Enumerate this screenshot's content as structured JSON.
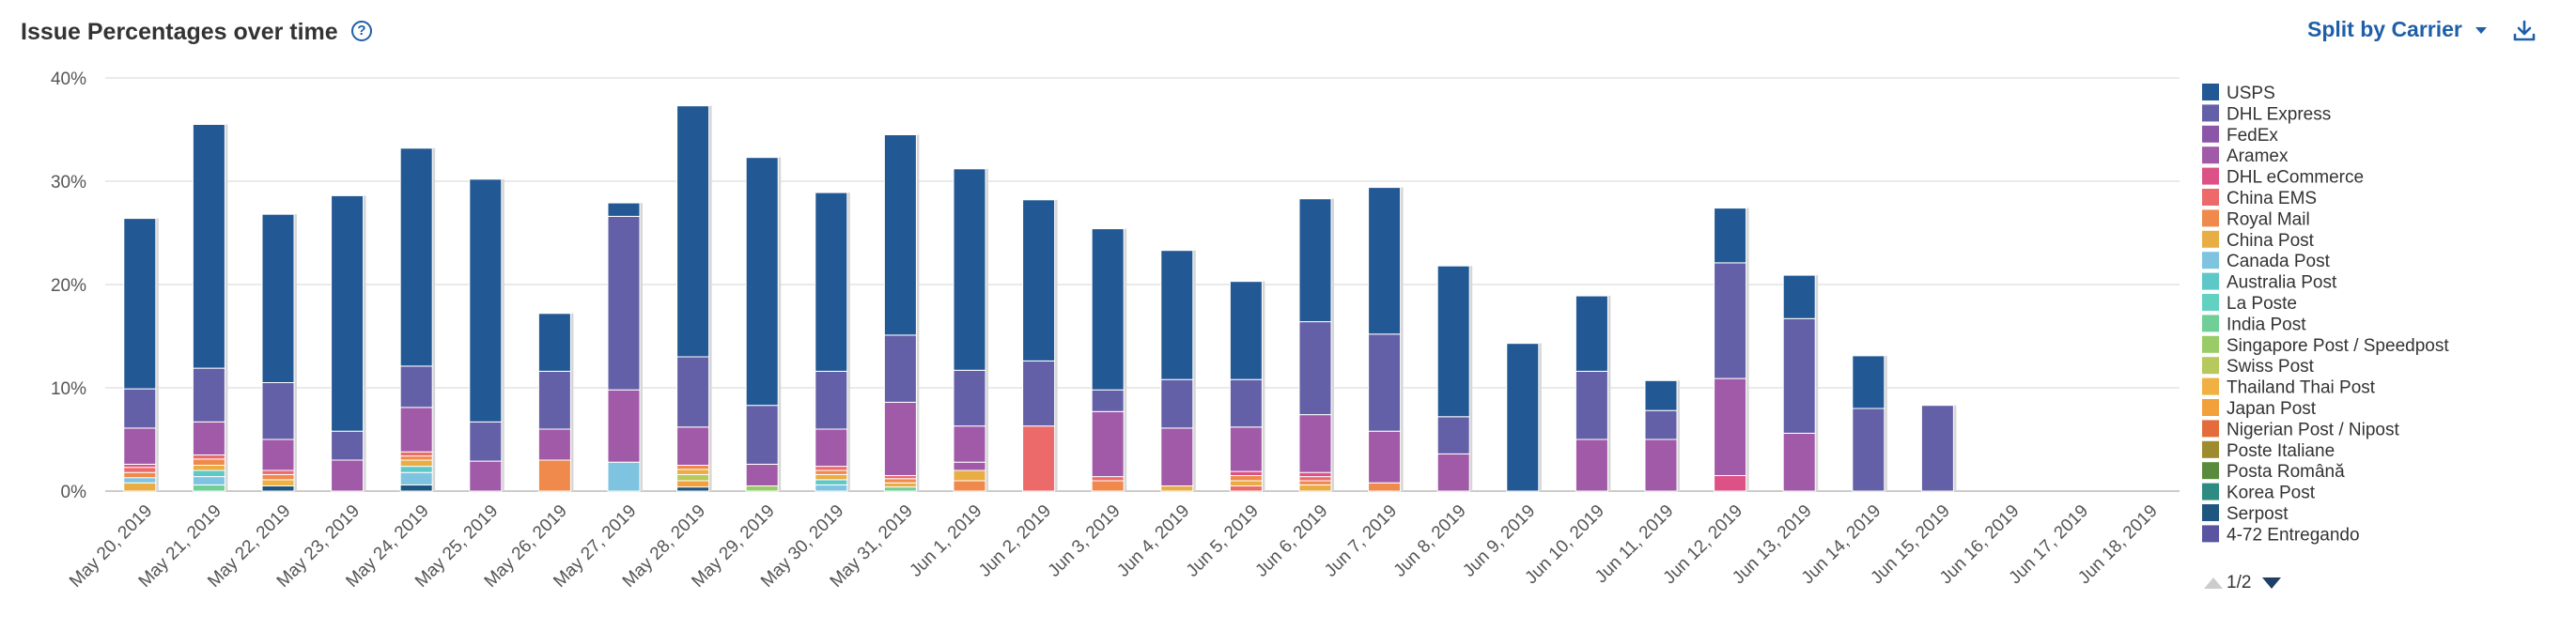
{
  "header": {
    "title": "Issue Percentages over time",
    "help_icon": "question-circle-icon",
    "split_label": "Split by Carrier",
    "download_icon": "download-icon",
    "accent_color": "#1f5fa8"
  },
  "legend": {
    "items": [
      {
        "name": "USPS",
        "color": "#225893"
      },
      {
        "name": "DHL Express",
        "color": "#6360a7"
      },
      {
        "name": "FedEx",
        "color": "#8c56a8"
      },
      {
        "name": "Aramex",
        "color": "#a15aa8"
      },
      {
        "name": "DHL eCommerce",
        "color": "#dd5286"
      },
      {
        "name": "China EMS",
        "color": "#ed6a6a"
      },
      {
        "name": "Royal Mail",
        "color": "#ef8a4c"
      },
      {
        "name": "China Post",
        "color": "#e8ad45"
      },
      {
        "name": "Canada Post",
        "color": "#7ec3df"
      },
      {
        "name": "Australia Post",
        "color": "#5ec8c8"
      },
      {
        "name": "La Poste",
        "color": "#63d1c2"
      },
      {
        "name": "India Post",
        "color": "#6fcf97"
      },
      {
        "name": "Singapore Post / Speedpost",
        "color": "#99cc66"
      },
      {
        "name": "Swiss Post",
        "color": "#b7c95c"
      },
      {
        "name": "Thailand Thai Post",
        "color": "#f0b042"
      },
      {
        "name": "Japan Post",
        "color": "#f2a03c"
      },
      {
        "name": "Nigerian Post / Nipost",
        "color": "#e46c3b"
      },
      {
        "name": "Poste Italiane",
        "color": "#9d8b2e"
      },
      {
        "name": "Posta Română",
        "color": "#5a8a3c"
      },
      {
        "name": "Korea Post",
        "color": "#2e8b84"
      },
      {
        "name": "Serpost",
        "color": "#1f5680"
      },
      {
        "name": "4-72 Entregando",
        "color": "#5a55a0"
      }
    ],
    "pager_text": "1/2"
  },
  "chart_data": {
    "type": "bar",
    "stacked": true,
    "title": "Issue Percentages over time",
    "ylim": [
      0,
      40
    ],
    "yticks": [
      "0%",
      "10%",
      "20%",
      "30%",
      "40%"
    ],
    "grid": true,
    "legend_position": "right",
    "categories": [
      "May 20, 2019",
      "May 21, 2019",
      "May 22, 2019",
      "May 23, 2019",
      "May 24, 2019",
      "May 25, 2019",
      "May 26, 2019",
      "May 27, 2019",
      "May 28, 2019",
      "May 29, 2019",
      "May 30, 2019",
      "May 31, 2019",
      "Jun 1, 2019",
      "Jun 2, 2019",
      "Jun 3, 2019",
      "Jun 4, 2019",
      "Jun 5, 2019",
      "Jun 6, 2019",
      "Jun 7, 2019",
      "Jun 8, 2019",
      "Jun 9, 2019",
      "Jun 10, 2019",
      "Jun 11, 2019",
      "Jun 12, 2019",
      "Jun 13, 2019",
      "Jun 14, 2019",
      "Jun 15, 2019",
      "Jun 16, 2019",
      "Jun 17, 2019",
      "Jun 18, 2019"
    ],
    "bars": [
      [
        [
          "China Post",
          0.8
        ],
        [
          "Canada Post",
          0.5
        ],
        [
          "Royal Mail",
          0.5
        ],
        [
          "China EMS",
          0.5
        ],
        [
          "DHL eCommerce",
          0.3
        ],
        [
          "Aramex",
          3.5
        ],
        [
          "DHL Express",
          3.8
        ],
        [
          "USPS",
          16.5
        ]
      ],
      [
        [
          "India Post",
          0.6
        ],
        [
          "Canada Post",
          0.8
        ],
        [
          "Australia Post",
          0.6
        ],
        [
          "China Post",
          0.5
        ],
        [
          "Royal Mail",
          0.6
        ],
        [
          "China EMS",
          0.4
        ],
        [
          "Aramex",
          3.2
        ],
        [
          "DHL Express",
          5.2
        ],
        [
          "USPS",
          23.6
        ]
      ],
      [
        [
          "Serpost",
          0.5
        ],
        [
          "Thailand Thai Post",
          0.6
        ],
        [
          "Royal Mail",
          0.5
        ],
        [
          "China EMS",
          0.4
        ],
        [
          "Aramex",
          3.0
        ],
        [
          "DHL Express",
          5.5
        ],
        [
          "USPS",
          16.3
        ]
      ],
      [
        [
          "Aramex",
          3.0
        ],
        [
          "DHL Express",
          2.8
        ],
        [
          "USPS",
          22.8
        ]
      ],
      [
        [
          "Serpost",
          0.6
        ],
        [
          "Canada Post",
          1.2
        ],
        [
          "Australia Post",
          0.6
        ],
        [
          "China Post",
          0.6
        ],
        [
          "Royal Mail",
          0.4
        ],
        [
          "China EMS",
          0.4
        ],
        [
          "Aramex",
          4.3
        ],
        [
          "DHL Express",
          4.0
        ],
        [
          "USPS",
          21.1
        ]
      ],
      [
        [
          "Aramex",
          2.9
        ],
        [
          "DHL Express",
          3.8
        ],
        [
          "USPS",
          23.5
        ]
      ],
      [
        [
          "Royal Mail",
          3.0
        ],
        [
          "Aramex",
          3.0
        ],
        [
          "DHL Express",
          5.6
        ],
        [
          "USPS",
          5.6
        ]
      ],
      [
        [
          "Canada Post",
          2.8
        ],
        [
          "Aramex",
          7.0
        ],
        [
          "DHL Express",
          16.8
        ],
        [
          "USPS",
          1.3
        ]
      ],
      [
        [
          "Serpost",
          0.4
        ],
        [
          "Japan Post",
          0.6
        ],
        [
          "Swiss Post",
          0.6
        ],
        [
          "China Post",
          0.5
        ],
        [
          "Royal Mail",
          0.4
        ],
        [
          "Aramex",
          3.7
        ],
        [
          "DHL Express",
          6.8
        ],
        [
          "USPS",
          24.3
        ]
      ],
      [
        [
          "Singapore Post / Speedpost",
          0.5
        ],
        [
          "Aramex",
          2.1
        ],
        [
          "DHL Express",
          5.7
        ],
        [
          "USPS",
          24.0
        ]
      ],
      [
        [
          "Canada Post",
          0.6
        ],
        [
          "Australia Post",
          0.5
        ],
        [
          "China Post",
          0.5
        ],
        [
          "Royal Mail",
          0.4
        ],
        [
          "China EMS",
          0.4
        ],
        [
          "Aramex",
          3.6
        ],
        [
          "DHL Express",
          5.6
        ],
        [
          "USPS",
          17.3
        ]
      ],
      [
        [
          "India Post",
          0.4
        ],
        [
          "China Post",
          0.4
        ],
        [
          "Royal Mail",
          0.4
        ],
        [
          "China EMS",
          0.3
        ],
        [
          "Aramex",
          7.1
        ],
        [
          "DHL Express",
          6.5
        ],
        [
          "USPS",
          19.4
        ]
      ],
      [
        [
          "Royal Mail",
          1.0
        ],
        [
          "China Post",
          1.0
        ],
        [
          "Aramex",
          0.8
        ],
        [
          "Aramex",
          3.5
        ],
        [
          "DHL Express",
          5.4
        ],
        [
          "USPS",
          19.5
        ]
      ],
      [
        [
          "China EMS",
          6.3
        ],
        [
          "DHL Express",
          6.3
        ],
        [
          "USPS",
          15.6
        ]
      ],
      [
        [
          "Royal Mail",
          1.0
        ],
        [
          "China EMS",
          0.4
        ],
        [
          "Aramex",
          6.3
        ],
        [
          "DHL Express",
          2.1
        ],
        [
          "USPS",
          15.6
        ]
      ],
      [
        [
          "China Post",
          0.5
        ],
        [
          "Aramex",
          5.6
        ],
        [
          "DHL Express",
          4.7
        ],
        [
          "USPS",
          12.5
        ]
      ],
      [
        [
          "China EMS",
          0.5
        ],
        [
          "China Post",
          0.5
        ],
        [
          "Royal Mail",
          0.5
        ],
        [
          "DHL eCommerce",
          0.4
        ],
        [
          "Aramex",
          4.3
        ],
        [
          "DHL Express",
          4.6
        ],
        [
          "USPS",
          9.5
        ]
      ],
      [
        [
          "China Post",
          0.6
        ],
        [
          "Royal Mail",
          0.4
        ],
        [
          "China EMS",
          0.4
        ],
        [
          "DHL eCommerce",
          0.4
        ],
        [
          "Aramex",
          5.6
        ],
        [
          "DHL Express",
          9.0
        ],
        [
          "USPS",
          11.9
        ]
      ],
      [
        [
          "Royal Mail",
          0.8
        ],
        [
          "Aramex",
          5.0
        ],
        [
          "DHL Express",
          9.4
        ],
        [
          "USPS",
          14.2
        ]
      ],
      [
        [
          "Aramex",
          3.6
        ],
        [
          "DHL Express",
          3.6
        ],
        [
          "USPS",
          14.6
        ]
      ],
      [
        [
          "USPS",
          14.3
        ]
      ],
      [
        [
          "Aramex",
          5.0
        ],
        [
          "DHL Express",
          6.6
        ],
        [
          "USPS",
          7.3
        ]
      ],
      [
        [
          "Aramex",
          5.0
        ],
        [
          "DHL Express",
          2.8
        ],
        [
          "USPS",
          2.9
        ]
      ],
      [
        [
          "DHL eCommerce",
          1.5
        ],
        [
          "Aramex",
          9.4
        ],
        [
          "DHL Express",
          11.2
        ],
        [
          "USPS",
          5.3
        ]
      ],
      [
        [
          "Aramex",
          5.6
        ],
        [
          "DHL Express",
          11.1
        ],
        [
          "USPS",
          4.2
        ]
      ],
      [
        [
          "DHL Express",
          8.0
        ],
        [
          "USPS",
          5.1
        ]
      ],
      [
        [
          "DHL Express",
          8.3
        ]
      ],
      [],
      [],
      []
    ]
  }
}
